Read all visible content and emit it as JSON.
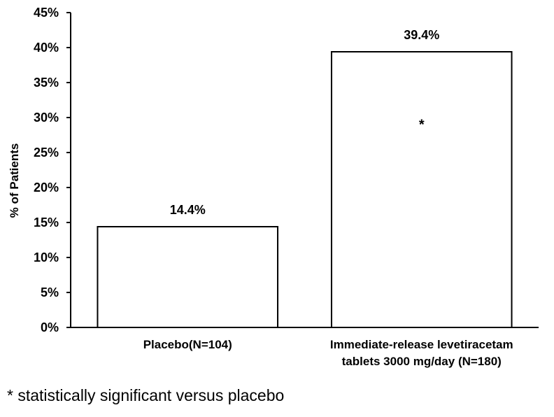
{
  "chart_data": {
    "type": "bar",
    "categories": [
      [
        "Placebo(N=104)"
      ],
      [
        "Immediate-release levetiracetam",
        "tablets 3000 mg/day (N=180)"
      ]
    ],
    "values": [
      14.4,
      39.4
    ],
    "data_labels": [
      "14.4%",
      "39.4%"
    ],
    "annotations": [
      {
        "category_index": 1,
        "text": "*"
      }
    ],
    "title": "",
    "xlabel": "",
    "ylabel": "% of Patients",
    "ylim": [
      0,
      45
    ],
    "yticks": [
      0,
      5,
      10,
      15,
      20,
      25,
      30,
      35,
      40,
      45
    ],
    "ytick_labels": [
      "0%",
      "5%",
      "10%",
      "15%",
      "20%",
      "25%",
      "30%",
      "35%",
      "40%",
      "45%"
    ],
    "grid": false,
    "legend": "none",
    "bar_fill": "#ffffff",
    "bar_stroke": "#000000"
  },
  "footnote": "* statistically significant versus placebo"
}
